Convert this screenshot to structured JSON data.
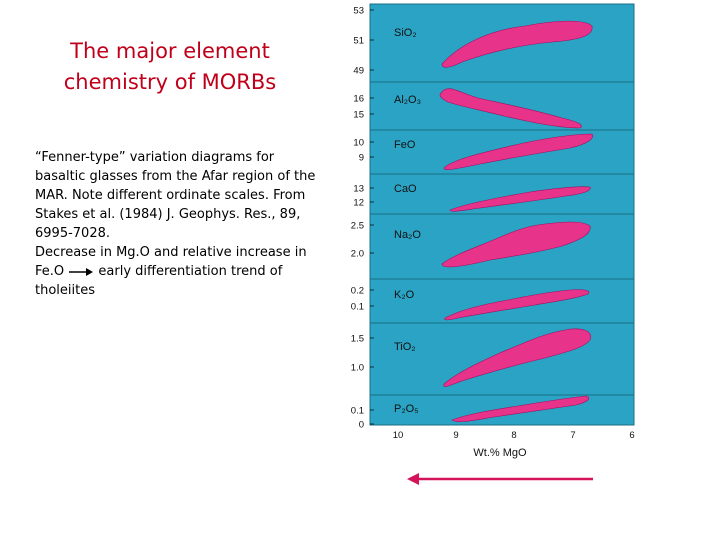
{
  "slide": {
    "title_lines": [
      "The major element",
      "chemistry of MORBs"
    ],
    "caption_lines": [
      "“Fenner-type” variation diagrams for basaltic glasses from the Afar region of the MAR. Note different ordinate scales. From Stakes et al. (1984) J. Geophys. Res., 89, 6995-7028.",
      "Decrease in Mg.O and relative increase in Fe.O",
      "early differentiation trend of tholeiites"
    ]
  },
  "colors": {
    "panel_bg": "#2aa3c4",
    "field_fill": "#e8338a",
    "arrow": "#d4145a",
    "title": "#c0001a"
  },
  "figure": {
    "xaxis_title": "Wt.% MgO",
    "x_ticks": [
      "10",
      "9",
      "8",
      "7",
      "6"
    ],
    "panels": [
      {
        "label": "SiO₂",
        "ticks": [
          "53",
          "51",
          "49"
        ]
      },
      {
        "label": "Al₂O₃",
        "ticks": [
          "16",
          "15"
        ]
      },
      {
        "label": "FeO",
        "ticks": [
          "10",
          "9"
        ]
      },
      {
        "label": "CaO",
        "ticks": [
          "13",
          "12"
        ]
      },
      {
        "label": "Na₂O",
        "ticks": [
          "2.5",
          "2.0"
        ]
      },
      {
        "label": "K₂O",
        "ticks": [
          "0.2",
          "0.1"
        ]
      },
      {
        "label": "TiO₂",
        "ticks": [
          "1.5",
          "1.0"
        ]
      },
      {
        "label": "P₂O₅",
        "ticks": [
          "0.1",
          "0"
        ]
      }
    ]
  }
}
